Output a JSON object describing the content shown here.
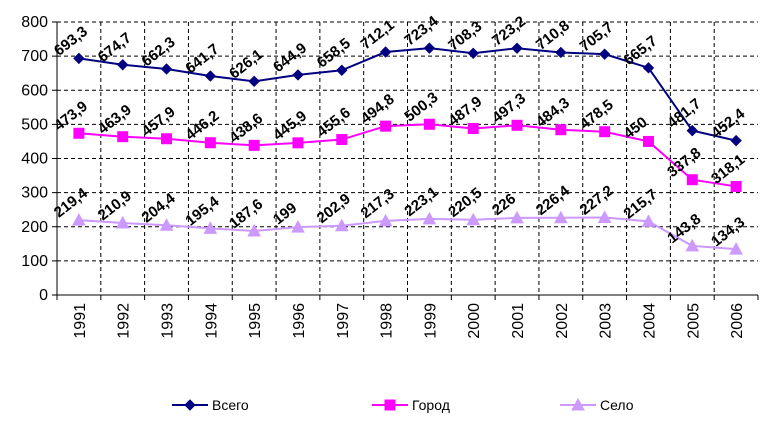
{
  "chart_data": {
    "type": "line",
    "categories": [
      "1991",
      "1992",
      "1993",
      "1994",
      "1995",
      "1996",
      "1997",
      "1998",
      "1999",
      "2000",
      "2001",
      "2002",
      "2003",
      "2004",
      "2005",
      "2006"
    ],
    "ylim": [
      0,
      800
    ],
    "yticks": [
      0,
      100,
      200,
      300,
      400,
      500,
      600,
      700,
      800
    ],
    "ytick_labels": [
      "0",
      "100",
      "200",
      "300",
      "400",
      "500",
      "600",
      "700",
      "800"
    ],
    "grid": true,
    "legend_position": "bottom",
    "series": [
      {
        "name": "Всего",
        "color": "#000080",
        "marker": "diamond",
        "values": [
          693.3,
          674.7,
          662.3,
          641.7,
          626.1,
          644.9,
          658.5,
          712.1,
          723.4,
          708.3,
          723.2,
          710.8,
          705.7,
          665.7,
          481.7,
          452.4
        ],
        "labels": [
          "693,3",
          "674,7",
          "662,3",
          "641,7",
          "626,1",
          "644,9",
          "658,5",
          "712,1",
          "723,4",
          "708,3",
          "723,2",
          "710,8",
          "705,7",
          "665,7",
          "481,7",
          "452,4"
        ]
      },
      {
        "name": "Город",
        "color": "#ff00ff",
        "marker": "square",
        "values": [
          473.9,
          463.9,
          457.9,
          446.2,
          438.6,
          445.9,
          455.6,
          494.8,
          500.3,
          487.9,
          497.3,
          484.3,
          478.5,
          450,
          337.8,
          318.1
        ],
        "labels": [
          "473,9",
          "463,9",
          "457,9",
          "446,2",
          "438,6",
          "445,9",
          "455,6",
          "494,8",
          "500,3",
          "487,9",
          "497,3",
          "484,3",
          "478,5",
          "450",
          "337,8",
          "318,1"
        ]
      },
      {
        "name": "Село",
        "color": "#cc99ff",
        "marker": "triangle",
        "values": [
          219.4,
          210.9,
          204.4,
          195.4,
          187.6,
          199,
          202.9,
          217.3,
          223.1,
          220.5,
          226,
          226.4,
          227.2,
          215.7,
          143.8,
          134.3
        ],
        "labels": [
          "219,4",
          "210,9",
          "204,4",
          "195,4",
          "187,6",
          "199",
          "202,9",
          "217,3",
          "223,1",
          "220,5",
          "226",
          "226,4",
          "227,2",
          "215,7",
          "143,8",
          "134,3"
        ]
      }
    ]
  }
}
